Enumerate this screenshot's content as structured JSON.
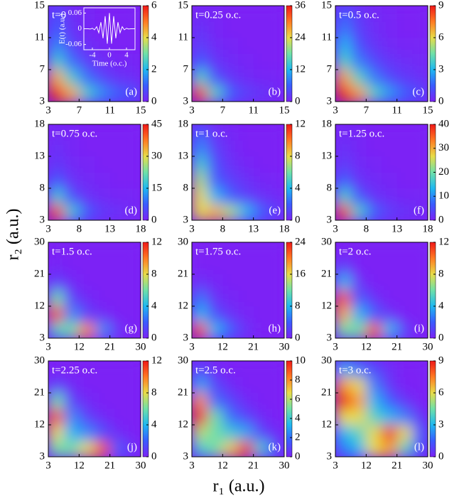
{
  "figure": {
    "xlabel": "r₁ (a.u.)",
    "ylabel": "r₂ (a.u.)"
  },
  "chart_data": [
    {
      "type": "heatmap",
      "title": "t=0",
      "label": "(a)",
      "xlim": [
        3,
        15
      ],
      "xticks": [
        3,
        7,
        11,
        15
      ],
      "ylim": [
        3,
        15
      ],
      "yticks": [
        3,
        7,
        11,
        15
      ],
      "zlim": [
        0,
        6
      ],
      "zticks": [
        0,
        2,
        4,
        6
      ],
      "colormap": [
        "#7b22f5",
        "#3a5cff",
        "#1fb8f0",
        "#6fe0a8",
        "#e8dc48",
        "#ff7a22",
        "#f01818"
      ],
      "z": [
        [
          6,
          4.5,
          2.5,
          1.5,
          1,
          0.8
        ],
        [
          4.5,
          2.5,
          1.2,
          0.6,
          0.3,
          0.2
        ],
        [
          2.5,
          1.2,
          0.5,
          0.2,
          0.1,
          0.1
        ],
        [
          1.5,
          0.6,
          0.2,
          0.1,
          0,
          0
        ],
        [
          1,
          0.3,
          0.1,
          0,
          0,
          0
        ],
        [
          0.8,
          0.2,
          0.1,
          0,
          0,
          0
        ]
      ],
      "inset": {
        "type": "line",
        "xlabel": "Time (o.c.)",
        "ylabel": "E(t) (a.u.)",
        "color": "#ffffff",
        "xlim": [
          -6,
          6
        ],
        "xticks": [
          -4,
          0,
          4
        ],
        "ylim": [
          -0.08,
          0.08
        ],
        "yticks": [
          -0.06,
          0,
          0.06
        ],
        "x": [
          -6,
          -5.5,
          -5,
          -4.5,
          -4,
          -3.5,
          -3,
          -2.5,
          -2,
          -1.5,
          -1,
          -0.5,
          0,
          0.5,
          1,
          1.5,
          2,
          2.5,
          3,
          3.5,
          4,
          4.5,
          5,
          5.5,
          6
        ],
        "values": [
          0,
          0,
          0,
          -0.001,
          0.002,
          -0.004,
          0.008,
          -0.015,
          0.025,
          -0.036,
          0.048,
          -0.057,
          0.06,
          -0.057,
          0.048,
          -0.036,
          0.025,
          -0.015,
          0.008,
          -0.004,
          0.002,
          -0.001,
          0,
          0,
          0
        ]
      }
    },
    {
      "type": "heatmap",
      "title": "t=0.25 o.c.",
      "label": "(b)",
      "xlim": [
        3,
        15
      ],
      "xticks": [
        3,
        7,
        11,
        15
      ],
      "ylim": [
        3,
        15
      ],
      "yticks": [
        3,
        7,
        11,
        15
      ],
      "zlim": [
        0,
        36
      ],
      "zticks": [
        0,
        12,
        24,
        36
      ],
      "colormap": [
        "#7b22f5",
        "#3a5cff",
        "#1fb8f0",
        "#6fe0a8",
        "#e8dc48",
        "#ff7a22",
        "#f01818"
      ],
      "z": [
        [
          34,
          16,
          6,
          3,
          2,
          1
        ],
        [
          16,
          5,
          2,
          1,
          0.5,
          0.5
        ],
        [
          6,
          2,
          1,
          0.5,
          0,
          0
        ],
        [
          3,
          1,
          0.5,
          0,
          0,
          0
        ],
        [
          2,
          0.5,
          0,
          0,
          0,
          0
        ],
        [
          1,
          0.5,
          0,
          0,
          0,
          0
        ]
      ]
    },
    {
      "type": "heatmap",
      "title": "t=0.5 o.c.",
      "label": "(c)",
      "xlim": [
        3,
        15
      ],
      "xticks": [
        3,
        7,
        11,
        15
      ],
      "ylim": [
        3,
        15
      ],
      "yticks": [
        3,
        7,
        11,
        15
      ],
      "zlim": [
        0,
        9
      ],
      "zticks": [
        0,
        3,
        6,
        9
      ],
      "colormap": [
        "#7b22f5",
        "#3a5cff",
        "#1fb8f0",
        "#6fe0a8",
        "#e8dc48",
        "#ff7a22",
        "#f01818"
      ],
      "z": [
        [
          9,
          7,
          4,
          2.5,
          1.5,
          1
        ],
        [
          7,
          4,
          2,
          1,
          0.6,
          0.4
        ],
        [
          4,
          2,
          1,
          0.5,
          0.3,
          0.2
        ],
        [
          3,
          1.2,
          0.5,
          0.2,
          0.1,
          0.1
        ],
        [
          2,
          0.8,
          0.3,
          0.1,
          0,
          0
        ],
        [
          1.5,
          0.6,
          0.2,
          0.1,
          0,
          0
        ]
      ]
    },
    {
      "type": "heatmap",
      "title": "t=0.75 o.c.",
      "label": "(d)",
      "xlim": [
        3,
        18
      ],
      "xticks": [
        3,
        8,
        13,
        18
      ],
      "ylim": [
        3,
        18
      ],
      "yticks": [
        3,
        8,
        13,
        18
      ],
      "zlim": [
        0,
        45
      ],
      "zticks": [
        0,
        15,
        30,
        45
      ],
      "colormap": [
        "#7b22f5",
        "#3a5cff",
        "#1fb8f0",
        "#6fe0a8",
        "#e8dc48",
        "#ff7a22",
        "#f01818"
      ],
      "z": [
        [
          42,
          18,
          7,
          3,
          2,
          1
        ],
        [
          18,
          6,
          2,
          1,
          0.5,
          0.5
        ],
        [
          7,
          2,
          1,
          0.5,
          0,
          0
        ],
        [
          3,
          1,
          0.5,
          0,
          0,
          0
        ],
        [
          2,
          0.5,
          0,
          0,
          0,
          0
        ],
        [
          1,
          0.5,
          0,
          0,
          0,
          0
        ]
      ]
    },
    {
      "type": "heatmap",
      "title": "t=1 o.c.",
      "label": "(e)",
      "xlim": [
        3,
        18
      ],
      "xticks": [
        3,
        8,
        13,
        18
      ],
      "ylim": [
        3,
        18
      ],
      "yticks": [
        3,
        8,
        13,
        18
      ],
      "zlim": [
        0,
        12
      ],
      "zticks": [
        0,
        4,
        8,
        12
      ],
      "colormap": [
        "#7b22f5",
        "#3a5cff",
        "#1fb8f0",
        "#6fe0a8",
        "#e8dc48",
        "#ff7a22",
        "#f01818"
      ],
      "z": [
        [
          8,
          9,
          7,
          4,
          2,
          1
        ],
        [
          8,
          4,
          2,
          1,
          0.5,
          0.3
        ],
        [
          7,
          2,
          1,
          0.5,
          0.2,
          0.1
        ],
        [
          5,
          1.5,
          0.5,
          0.2,
          0,
          0
        ],
        [
          3,
          1,
          0.3,
          0,
          0,
          0
        ],
        [
          2,
          0.5,
          0.2,
          0,
          0,
          0
        ]
      ]
    },
    {
      "type": "heatmap",
      "title": "t=1.25 o.c.",
      "label": "(f)",
      "xlim": [
        3,
        18
      ],
      "xticks": [
        3,
        8,
        13,
        18
      ],
      "ylim": [
        3,
        18
      ],
      "yticks": [
        3,
        8,
        13,
        18
      ],
      "zlim": [
        0,
        40
      ],
      "zticks": [
        0,
        10,
        20,
        30,
        40
      ],
      "colormap": [
        "#7b22f5",
        "#3a5cff",
        "#1fb8f0",
        "#6fe0a8",
        "#e8dc48",
        "#ff7a22",
        "#f01818"
      ],
      "z": [
        [
          38,
          17,
          7,
          3,
          2,
          1
        ],
        [
          17,
          6,
          2,
          1,
          0.5,
          0.5
        ],
        [
          7,
          2,
          1,
          0.5,
          0,
          0
        ],
        [
          3,
          1,
          0.5,
          0,
          0,
          0
        ],
        [
          2,
          0.5,
          0,
          0,
          0,
          0
        ],
        [
          1,
          0.5,
          0,
          0,
          0,
          0
        ]
      ]
    },
    {
      "type": "heatmap",
      "title": "t=1.5 o.c.",
      "label": "(g)",
      "xlim": [
        3,
        30
      ],
      "xticks": [
        3,
        12,
        21,
        30
      ],
      "ylim": [
        3,
        30
      ],
      "yticks": [
        3,
        12,
        21,
        30
      ],
      "zlim": [
        0,
        12
      ],
      "zticks": [
        0,
        4,
        8,
        12
      ],
      "colormap": [
        "#7b22f5",
        "#3a5cff",
        "#1fb8f0",
        "#6fe0a8",
        "#e8dc48",
        "#ff7a22",
        "#f01818"
      ],
      "z": [
        [
          5,
          6,
          10,
          3,
          0.5,
          0
        ],
        [
          11,
          3,
          1,
          0.3,
          0,
          0
        ],
        [
          6,
          1,
          0.3,
          0,
          0,
          0
        ],
        [
          1,
          0.3,
          0,
          0,
          0,
          0
        ],
        [
          0.2,
          0,
          0,
          0,
          0,
          0
        ],
        [
          0,
          0,
          0,
          0,
          0,
          0
        ]
      ]
    },
    {
      "type": "heatmap",
      "title": "t=1.75 o.c.",
      "label": "(h)",
      "xlim": [
        3,
        30
      ],
      "xticks": [
        3,
        12,
        21,
        30
      ],
      "ylim": [
        3,
        30
      ],
      "yticks": [
        3,
        12,
        21,
        30
      ],
      "zlim": [
        0,
        24
      ],
      "zticks": [
        0,
        8,
        16,
        24
      ],
      "colormap": [
        "#7b22f5",
        "#3a5cff",
        "#1fb8f0",
        "#6fe0a8",
        "#e8dc48",
        "#ff7a22",
        "#f01818"
      ],
      "z": [
        [
          22,
          8,
          4,
          1,
          0,
          0
        ],
        [
          8,
          3,
          1,
          0.2,
          0,
          0
        ],
        [
          5,
          1,
          0.3,
          0,
          0,
          0
        ],
        [
          1,
          0.3,
          0,
          0,
          0,
          0
        ],
        [
          0,
          0,
          0,
          0,
          0,
          0
        ],
        [
          0,
          0,
          0,
          0,
          0,
          0
        ]
      ]
    },
    {
      "type": "heatmap",
      "title": "t=2 o.c.",
      "label": "(i)",
      "xlim": [
        3,
        30
      ],
      "xticks": [
        3,
        12,
        21,
        30
      ],
      "ylim": [
        3,
        30
      ],
      "yticks": [
        3,
        12,
        21,
        30
      ],
      "zlim": [
        0,
        12
      ],
      "zticks": [
        0,
        4,
        8,
        12
      ],
      "colormap": [
        "#7b22f5",
        "#3a5cff",
        "#1fb8f0",
        "#6fe0a8",
        "#e8dc48",
        "#ff7a22",
        "#f01818"
      ],
      "z": [
        [
          6,
          6,
          11,
          4,
          1,
          0
        ],
        [
          9,
          4,
          2,
          0.5,
          0,
          0
        ],
        [
          11,
          2,
          0.5,
          0,
          0,
          0
        ],
        [
          4,
          0.5,
          0,
          0,
          0,
          0
        ],
        [
          1,
          0,
          0,
          0,
          0,
          0
        ],
        [
          0,
          0,
          0,
          0,
          0,
          0
        ]
      ]
    },
    {
      "type": "heatmap",
      "title": "t=2.25 o.c.",
      "label": "(j)",
      "xlim": [
        3,
        30
      ],
      "xticks": [
        3,
        12,
        21,
        30
      ],
      "ylim": [
        3,
        30
      ],
      "yticks": [
        3,
        12,
        21,
        30
      ],
      "zlim": [
        0,
        12
      ],
      "zticks": [
        0,
        4,
        8,
        12
      ],
      "colormap": [
        "#7b22f5",
        "#3a5cff",
        "#1fb8f0",
        "#6fe0a8",
        "#e8dc48",
        "#ff7a22",
        "#f01818"
      ],
      "z": [
        [
          6,
          6,
          8,
          11,
          2,
          0.3
        ],
        [
          8,
          4,
          3,
          1.5,
          0.3,
          0
        ],
        [
          11,
          3,
          1,
          0.3,
          0,
          0
        ],
        [
          6,
          1,
          0.3,
          0,
          0,
          0
        ],
        [
          1,
          0.3,
          0,
          0,
          0,
          0
        ],
        [
          0,
          0,
          0,
          0,
          0,
          0
        ]
      ]
    },
    {
      "type": "heatmap",
      "title": "t=2.5 o.c.",
      "label": "(k)",
      "xlim": [
        3,
        30
      ],
      "xticks": [
        3,
        12,
        21,
        30
      ],
      "ylim": [
        3,
        30
      ],
      "yticks": [
        3,
        12,
        21,
        30
      ],
      "zlim": [
        0,
        10
      ],
      "zticks": [
        0,
        2,
        4,
        6,
        8,
        10
      ],
      "colormap": [
        "#7b22f5",
        "#3a5cff",
        "#1fb8f0",
        "#6fe0a8",
        "#e8dc48",
        "#ff7a22",
        "#f01818"
      ],
      "z": [
        [
          4,
          5,
          7,
          10,
          4,
          1
        ],
        [
          6,
          5,
          4,
          3,
          1,
          0.3
        ],
        [
          10,
          5,
          2,
          1,
          0.3,
          0
        ],
        [
          8,
          2,
          1,
          0.3,
          0,
          0
        ],
        [
          3,
          1,
          0.3,
          0,
          0,
          0
        ],
        [
          1,
          0.3,
          0,
          0,
          0,
          0
        ]
      ]
    },
    {
      "type": "heatmap",
      "title": "t=3 o.c.",
      "label": "(l)",
      "xlim": [
        3,
        30
      ],
      "xticks": [
        3,
        12,
        21,
        30
      ],
      "ylim": [
        3,
        30
      ],
      "yticks": [
        3,
        12,
        21,
        30
      ],
      "zlim": [
        0,
        9
      ],
      "zticks": [
        0,
        3,
        6,
        9
      ],
      "colormap": [
        "#7b22f5",
        "#3a5cff",
        "#1fb8f0",
        "#6fe0a8",
        "#e8dc48",
        "#ff7a22",
        "#f01818"
      ],
      "z": [
        [
          2,
          3,
          6,
          7,
          4,
          1
        ],
        [
          3,
          4,
          6,
          9,
          6,
          1.5
        ],
        [
          6,
          6,
          4,
          3,
          2,
          0.5
        ],
        [
          9,
          7,
          3,
          1.5,
          0.5,
          0
        ],
        [
          7,
          6,
          2,
          0.5,
          0,
          0
        ],
        [
          3,
          2,
          1,
          0.3,
          0,
          0
        ]
      ]
    }
  ]
}
